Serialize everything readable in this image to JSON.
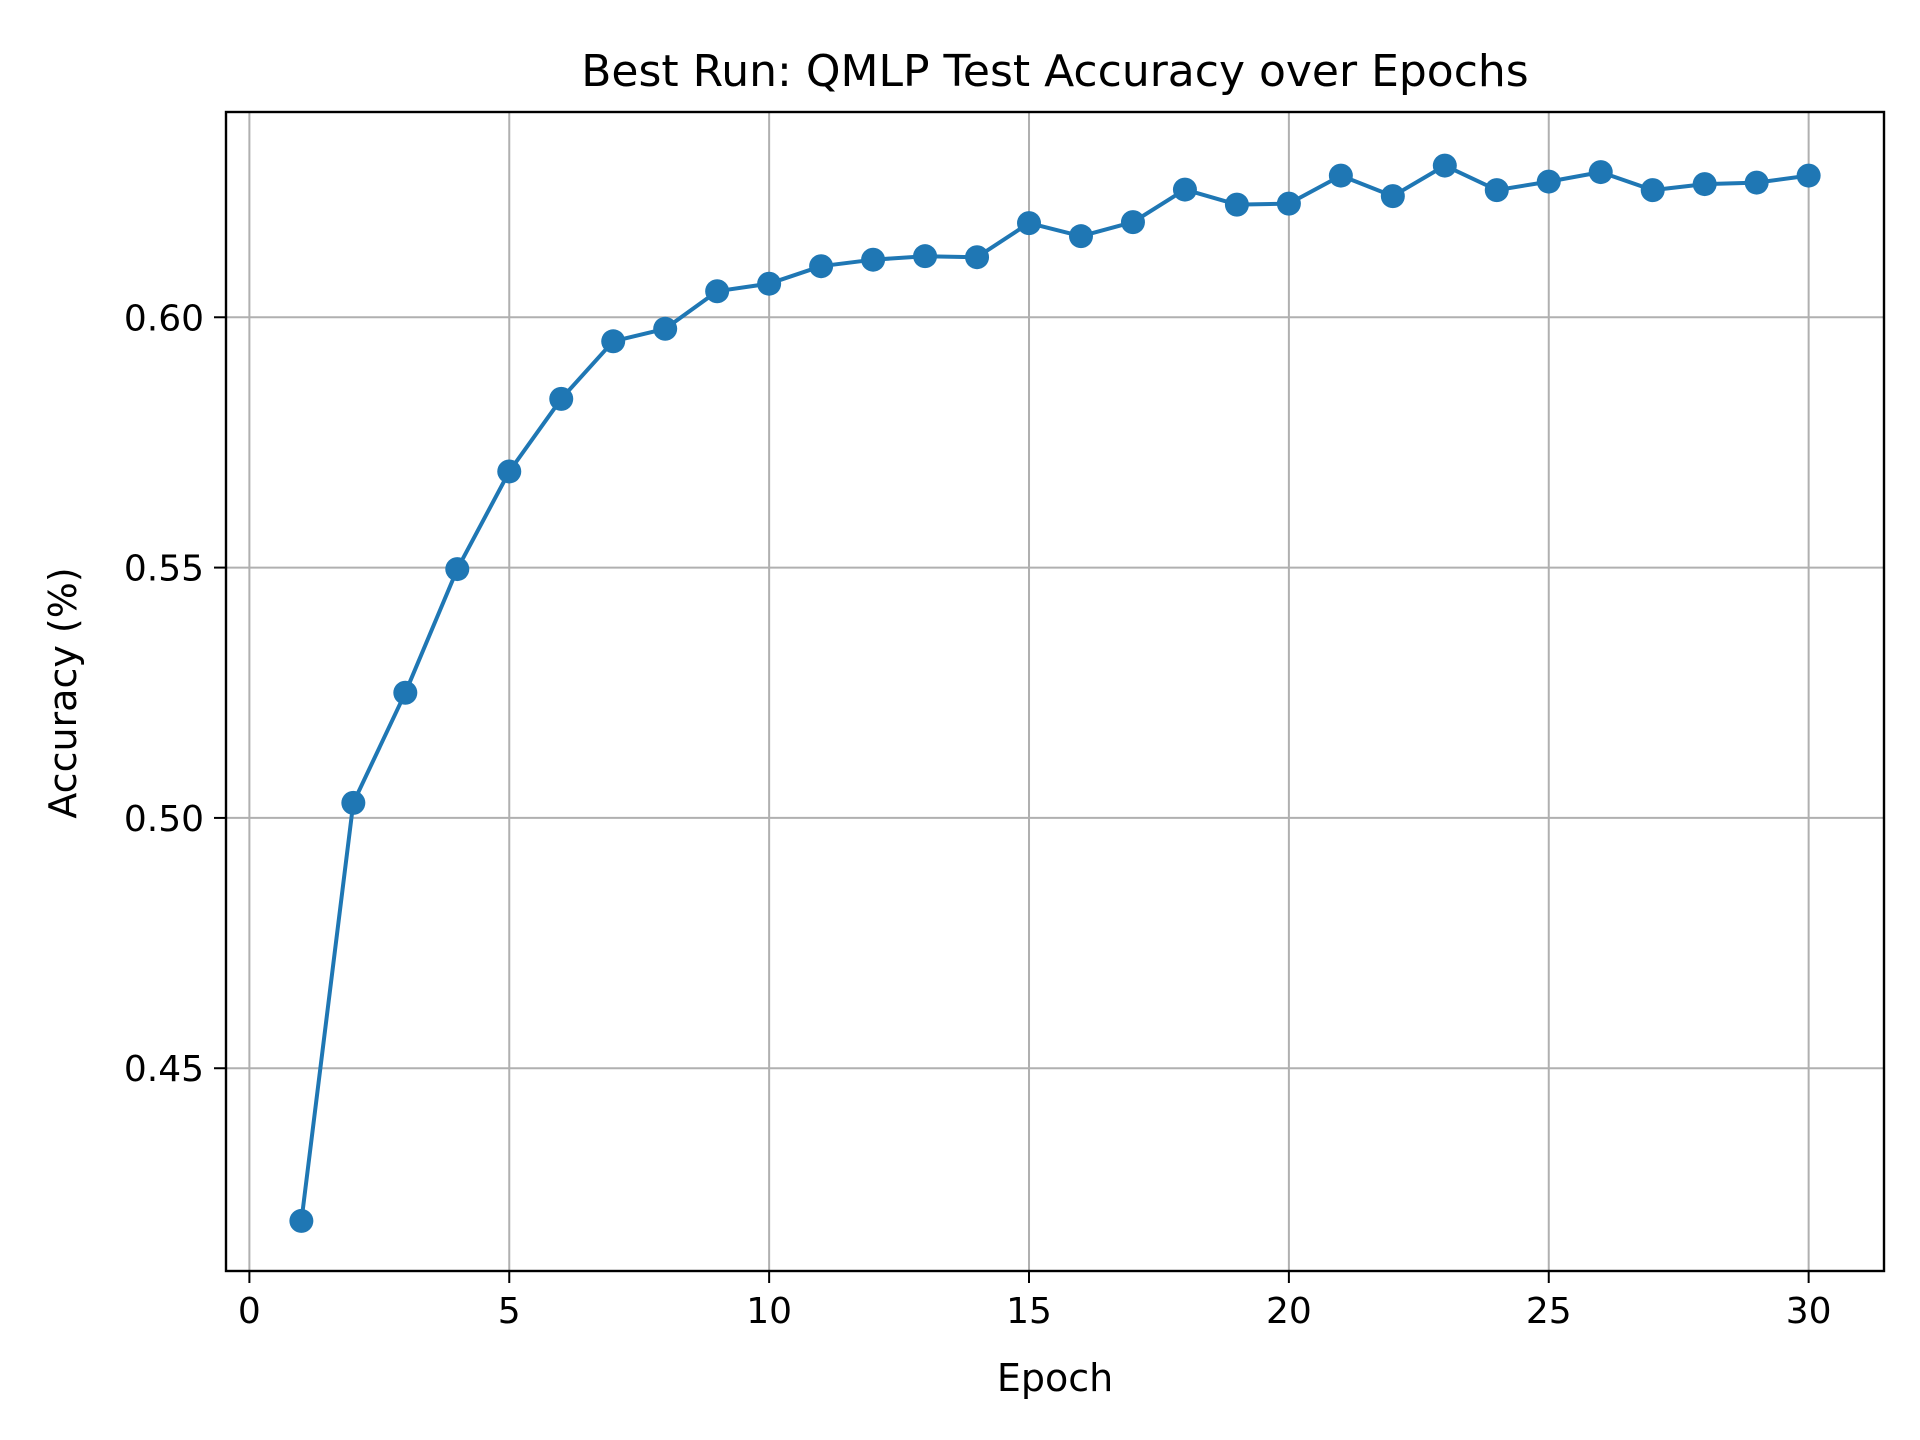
{
  "chart_data": {
    "type": "line",
    "title": "Best Run: QMLP Test Accuracy over Epochs",
    "xlabel": "Epoch",
    "ylabel": "Accuracy (%)",
    "xlim": [
      -0.45,
      31.45
    ],
    "ylim": [
      0.4095,
      0.641
    ],
    "xticks": [
      0,
      5,
      10,
      15,
      20,
      25,
      30
    ],
    "yticks": [
      0.45,
      0.5,
      0.55,
      0.6
    ],
    "ytick_labels": [
      "0.45",
      "0.50",
      "0.55",
      "0.60"
    ],
    "grid": true,
    "color": "#1f77b4",
    "marker": "circle",
    "series": [
      {
        "x": [
          1,
          2,
          3,
          4,
          5,
          6,
          7,
          8,
          9,
          10,
          11,
          12,
          13,
          14,
          15,
          16,
          17,
          18,
          19,
          20,
          21,
          22,
          23,
          24,
          25,
          26,
          27,
          28,
          29,
          30
        ],
        "values": [
          0.4195,
          0.503,
          0.525,
          0.5497,
          0.5692,
          0.5837,
          0.5952,
          0.5977,
          0.6052,
          0.6067,
          0.6102,
          0.6115,
          0.6122,
          0.612,
          0.6188,
          0.6162,
          0.619,
          0.6255,
          0.6225,
          0.6227,
          0.6283,
          0.6242,
          0.6303,
          0.6254,
          0.6271,
          0.629,
          0.6254,
          0.6266,
          0.6269,
          0.6283
        ]
      }
    ]
  }
}
